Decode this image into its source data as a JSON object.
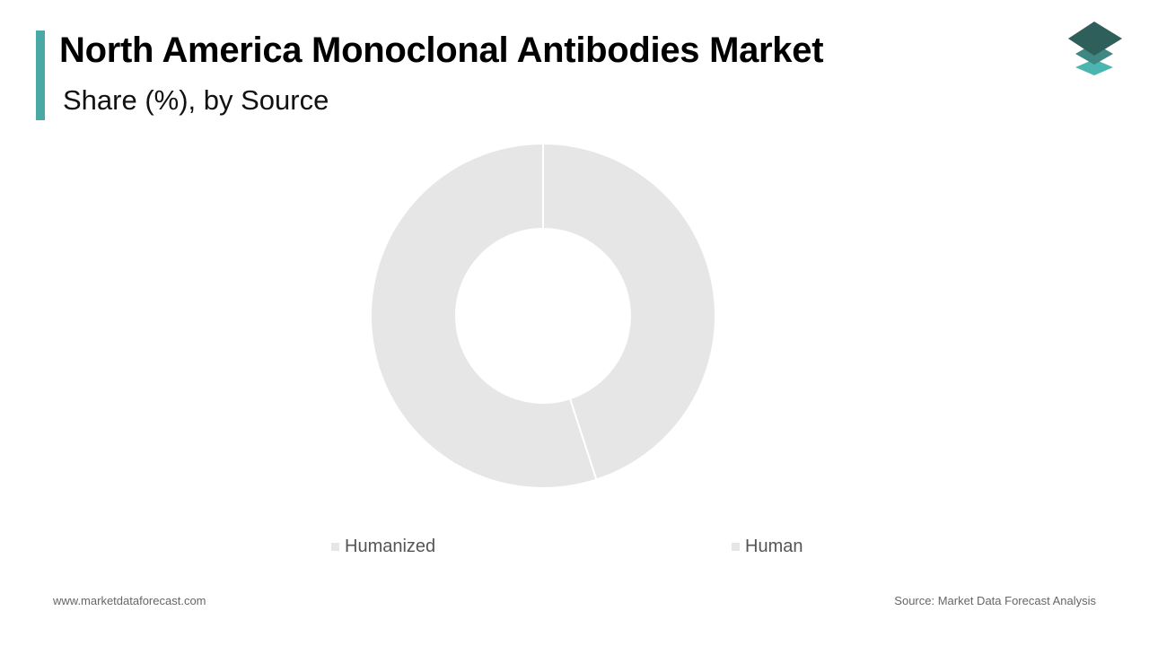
{
  "header": {
    "title": "North America Monoclonal Antibodies Market",
    "subtitle": "Share (%), by Source"
  },
  "colors": {
    "accent": "#4aa9a4",
    "slice_fill": "#e6e6e6",
    "slice_stroke": "#ffffff",
    "logo_top": "#2f5f5a",
    "logo_mid": "#3f8782",
    "logo_bottom": "#4bb5b0"
  },
  "logo": {
    "icon": "stacked-layers-icon"
  },
  "chart_data": {
    "type": "pie",
    "donut": true,
    "start_at": "top",
    "direction": "clockwise",
    "categories": [
      "Humanized",
      "Human"
    ],
    "legend_entries": [
      "Humanized",
      "Human"
    ],
    "slices": [
      {
        "label": "Human",
        "value": 45
      },
      {
        "label": "Humanized",
        "value": 55
      }
    ],
    "legend_placement": "bottom",
    "data_labels": false
  },
  "footer": {
    "website": "www.marketdataforecast.com",
    "source": "Source: Market Data Forecast Analysis"
  }
}
